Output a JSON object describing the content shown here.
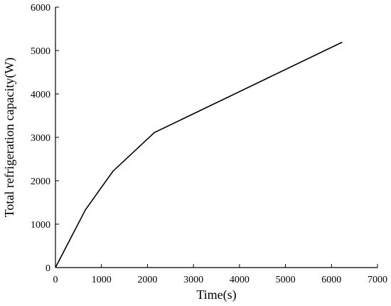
{
  "chart_data": {
    "type": "line",
    "title": "",
    "xlabel": "Time(s)",
    "ylabel": "Total refrigeration capacity(W)",
    "xlim": [
      0,
      7000
    ],
    "ylim": [
      0,
      6000
    ],
    "xticks": [
      0,
      1000,
      2000,
      3000,
      4000,
      5000,
      6000,
      7000
    ],
    "yticks": [
      0,
      1000,
      2000,
      3000,
      4000,
      5000,
      6000
    ],
    "grid": false,
    "series": [
      {
        "x": [
          0,
          650,
          1250,
          2150,
          6230
        ],
        "y": [
          0,
          1330,
          2220,
          3110,
          5190
        ],
        "color": "#000000"
      }
    ]
  }
}
